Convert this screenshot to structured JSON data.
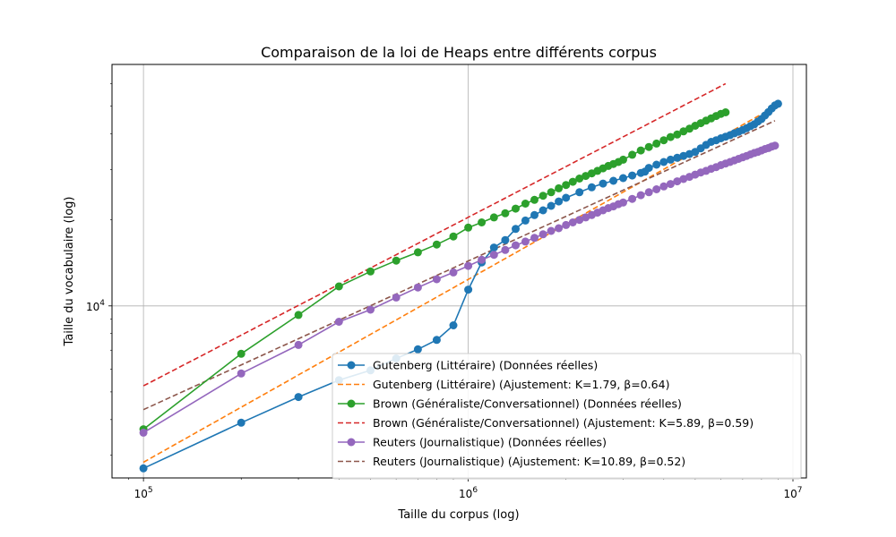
{
  "chart_data": {
    "type": "line",
    "title": "Comparaison de la loi de Heaps entre différents corpus",
    "xlabel": "Taille du corpus (log)",
    "ylabel": "Taille du vocabulaire (log)",
    "x_scale": "log",
    "y_scale": "log",
    "xlim": [
      80000,
      11000000
    ],
    "ylim": [
      2500,
      70000
    ],
    "x_ticks": [
      {
        "value": 100000,
        "base": "10",
        "exp": "5"
      },
      {
        "value": 1000000,
        "base": "10",
        "exp": "6"
      },
      {
        "value": 10000000,
        "base": "10",
        "exp": "7"
      }
    ],
    "y_ticks": [
      {
        "value": 10000,
        "base": "10",
        "exp": "4"
      }
    ],
    "grid": true,
    "legend_position": "lower-right",
    "series": [
      {
        "name": "Gutenberg (Littéraire) (Données réelles)",
        "kind": "data",
        "color": "#1f77b4",
        "x": [
          100000,
          200000,
          300000,
          400000,
          500000,
          600000,
          700000,
          800000,
          900000,
          1000000,
          1100000,
          1200000,
          1300000,
          1400000,
          1500000,
          1600000,
          1700000,
          1800000,
          1900000,
          2000000,
          2200000,
          2400000,
          2600000,
          2800000,
          3000000,
          3200000,
          3400000,
          3500000,
          3600000,
          3800000,
          4000000,
          4200000,
          4400000,
          4600000,
          4800000,
          5000000,
          5200000,
          5400000,
          5600000,
          5800000,
          6000000,
          6200000,
          6400000,
          6600000,
          6800000,
          7000000,
          7200000,
          7400000,
          7600000,
          7800000,
          8000000,
          8200000,
          8400000,
          8600000,
          8800000,
          9000000
        ],
        "y": [
          2700,
          3900,
          4800,
          5500,
          5950,
          6550,
          7050,
          7600,
          8550,
          11400,
          14200,
          16000,
          17000,
          18600,
          19900,
          20800,
          21600,
          22400,
          23200,
          23900,
          25000,
          26000,
          26800,
          27400,
          28000,
          28600,
          29200,
          29500,
          30400,
          31200,
          31900,
          32500,
          33000,
          33500,
          34000,
          34600,
          35600,
          36600,
          37500,
          38000,
          38600,
          39100,
          39600,
          40200,
          40700,
          41300,
          41900,
          42600,
          43200,
          44200,
          45100,
          46400,
          47700,
          49100,
          50300,
          51000
        ]
      },
      {
        "name": "Gutenberg (Littéraire) (Ajustement: K=1.79, β=0.64)",
        "kind": "fit",
        "color": "#ff7f0e",
        "K": 1.79,
        "beta": 0.64,
        "x_range": [
          100000,
          9000000
        ]
      },
      {
        "name": "Brown (Généraliste/Conversationnel) (Données réelles)",
        "kind": "data",
        "color": "#2ca02c",
        "x": [
          100000,
          200000,
          300000,
          400000,
          500000,
          600000,
          700000,
          800000,
          900000,
          1000000,
          1100000,
          1200000,
          1300000,
          1400000,
          1500000,
          1600000,
          1700000,
          1800000,
          1900000,
          2000000,
          2100000,
          2200000,
          2300000,
          2400000,
          2500000,
          2600000,
          2700000,
          2800000,
          2900000,
          3000000,
          3200000,
          3400000,
          3600000,
          3800000,
          4000000,
          4200000,
          4400000,
          4600000,
          4800000,
          5000000,
          5200000,
          5400000,
          5600000,
          5800000,
          6000000,
          6200000
        ],
        "y": [
          3700,
          6800,
          9300,
          11700,
          13200,
          14400,
          15400,
          16400,
          17500,
          18800,
          19600,
          20400,
          21100,
          21900,
          22800,
          23500,
          24300,
          25000,
          25800,
          26500,
          27200,
          27900,
          28500,
          29100,
          29700,
          30300,
          30900,
          31400,
          31900,
          32500,
          33800,
          35000,
          36000,
          37000,
          38000,
          39000,
          39800,
          40800,
          41700,
          42700,
          43600,
          44500,
          45300,
          46200,
          47000,
          47600
        ]
      },
      {
        "name": "Brown (Généraliste/Conversationnel) (Ajustement: K=5.89, β=0.59)",
        "kind": "fit",
        "color": "#d62728",
        "K": 5.89,
        "beta": 0.59,
        "x_range": [
          100000,
          6200000
        ]
      },
      {
        "name": "Reuters (Journalistique) (Données réelles)",
        "kind": "data",
        "color": "#9467bd",
        "x": [
          100000,
          200000,
          300000,
          400000,
          500000,
          600000,
          700000,
          800000,
          900000,
          1000000,
          1100000,
          1200000,
          1300000,
          1400000,
          1500000,
          1600000,
          1700000,
          1800000,
          1900000,
          2000000,
          2100000,
          2200000,
          2300000,
          2400000,
          2500000,
          2600000,
          2700000,
          2800000,
          2900000,
          3000000,
          3200000,
          3400000,
          3600000,
          3800000,
          4000000,
          4200000,
          4400000,
          4600000,
          4800000,
          5000000,
          5200000,
          5400000,
          5600000,
          5800000,
          6000000,
          6200000,
          6400000,
          6600000,
          6800000,
          7000000,
          7200000,
          7400000,
          7600000,
          7800000,
          8000000,
          8200000,
          8400000,
          8600000,
          8800000
        ],
        "y": [
          3600,
          5800,
          7300,
          8800,
          9700,
          10700,
          11600,
          12400,
          13100,
          13800,
          14500,
          15100,
          15700,
          16300,
          16800,
          17300,
          17800,
          18300,
          18700,
          19200,
          19600,
          20000,
          20400,
          20800,
          21200,
          21600,
          22000,
          22300,
          22700,
          23000,
          23700,
          24400,
          25000,
          25600,
          26200,
          26700,
          27300,
          27800,
          28300,
          28800,
          29300,
          29700,
          30200,
          30600,
          31100,
          31500,
          31900,
          32300,
          32700,
          33100,
          33500,
          33900,
          34300,
          34600,
          35000,
          35400,
          35700,
          36100,
          36400
        ]
      },
      {
        "name": "Reuters (Journalistique) (Ajustement: K=10.89, β=0.52)",
        "kind": "fit",
        "color": "#8c564b",
        "K": 10.89,
        "beta": 0.52,
        "x_range": [
          100000,
          8800000
        ]
      }
    ]
  }
}
